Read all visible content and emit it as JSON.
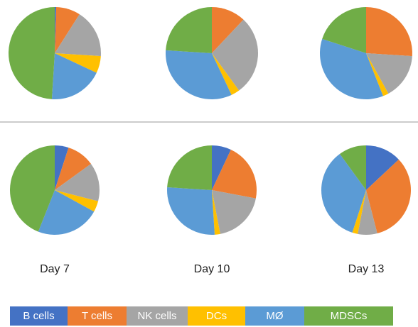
{
  "categories": [
    "B cells",
    "T cells",
    "NK cells",
    "DCs",
    "MØ",
    "MDSCs"
  ],
  "colors": [
    "#4472c4",
    "#ed7d31",
    "#a5a5a5",
    "#ffc000",
    "#5b9bd5",
    "#70ad47"
  ],
  "columns": [
    "Day 7",
    "Day 10",
    "Day 13"
  ],
  "chart_data": [
    {
      "type": "pie",
      "values": [
        0.5,
        8.5,
        17,
        6,
        19,
        49
      ]
    },
    {
      "type": "pie",
      "values": [
        0,
        12,
        28,
        3,
        33,
        24
      ]
    },
    {
      "type": "pie",
      "values": [
        0,
        26,
        16,
        2,
        36,
        20
      ]
    },
    {
      "type": "pie",
      "values": [
        5,
        10,
        14,
        4,
        23,
        44
      ]
    },
    {
      "type": "pie",
      "values": [
        7,
        21,
        19,
        2,
        27,
        24
      ]
    },
    {
      "type": "pie",
      "values": [
        13,
        33,
        7,
        2,
        35,
        10
      ]
    }
  ]
}
